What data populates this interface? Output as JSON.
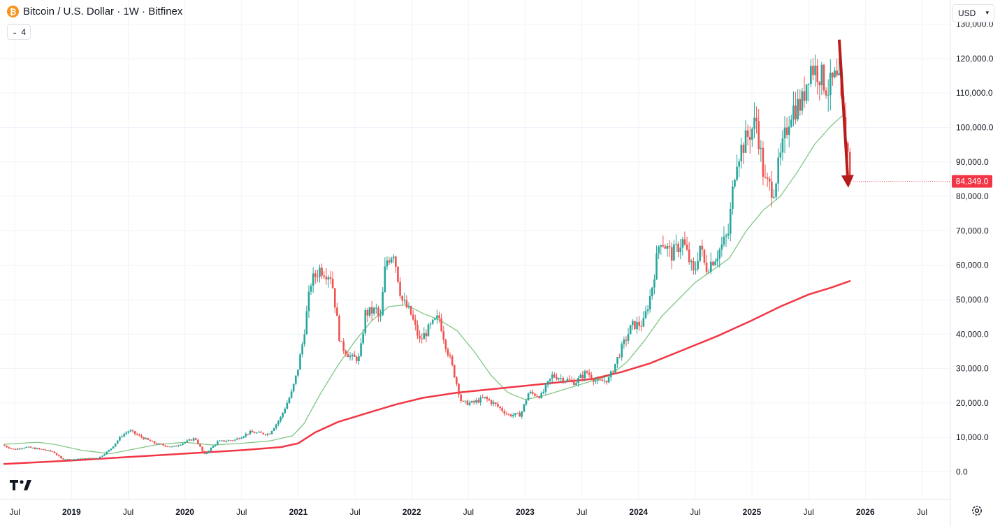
{
  "header": {
    "symbol_icon": "bitcoin-icon",
    "title": "Bitcoin / U.S. Dollar · 1W · Bitfinex",
    "indicators_count": "4"
  },
  "currency": {
    "selected": "USD"
  },
  "colors": {
    "up": "#26a69a",
    "down": "#ef5350",
    "ma_short": "#81c784",
    "ma_long": "#f23645",
    "arrow": "#b71c1c",
    "price_label": "#f23645",
    "grid": "#f0f3fa"
  },
  "icons": {
    "logo": "tradingview-logo-icon",
    "settings": "gear-icon"
  },
  "chart_data": {
    "type": "candlestick",
    "ylim": [
      -8000,
      137000
    ],
    "y_ticks": [
      {
        "value": 130000,
        "label": "130,000.0"
      },
      {
        "value": 120000,
        "label": "120,000.0"
      },
      {
        "value": 110000,
        "label": "110,000.0"
      },
      {
        "value": 100000,
        "label": "100,000.0"
      },
      {
        "value": 90000,
        "label": "90,000.0"
      },
      {
        "value": 80000,
        "label": "80,000.0"
      },
      {
        "value": 70000,
        "label": "70,000.0"
      },
      {
        "value": 60000,
        "label": "60,000.0"
      },
      {
        "value": 50000,
        "label": "50,000.0"
      },
      {
        "value": 40000,
        "label": "40,000.0"
      },
      {
        "value": 30000,
        "label": "30,000.0"
      },
      {
        "value": 20000,
        "label": "20,000.0"
      },
      {
        "value": 10000,
        "label": "10,000.0"
      },
      {
        "value": 0,
        "label": "0.0"
      }
    ],
    "x_ticks": [
      {
        "t": 2018.5,
        "label": "Jul",
        "bold": false
      },
      {
        "t": 2019.0,
        "label": "2019",
        "bold": true
      },
      {
        "t": 2019.5,
        "label": "Jul",
        "bold": false
      },
      {
        "t": 2020.0,
        "label": "2020",
        "bold": true
      },
      {
        "t": 2020.5,
        "label": "Jul",
        "bold": false
      },
      {
        "t": 2021.0,
        "label": "2021",
        "bold": true
      },
      {
        "t": 2021.5,
        "label": "Jul",
        "bold": false
      },
      {
        "t": 2022.0,
        "label": "2022",
        "bold": true
      },
      {
        "t": 2022.5,
        "label": "Jul",
        "bold": false
      },
      {
        "t": 2023.0,
        "label": "2023",
        "bold": true
      },
      {
        "t": 2023.5,
        "label": "Jul",
        "bold": false
      },
      {
        "t": 2024.0,
        "label": "2024",
        "bold": true
      },
      {
        "t": 2024.5,
        "label": "Jul",
        "bold": false
      },
      {
        "t": 2025.0,
        "label": "2025",
        "bold": true
      },
      {
        "t": 2025.5,
        "label": "Jul",
        "bold": false
      },
      {
        "t": 2026.0,
        "label": "2026",
        "bold": true
      },
      {
        "t": 2026.5,
        "label": "Jul",
        "bold": false
      }
    ],
    "x_range": [
      2018.4,
      2026.75
    ],
    "price_anchors": [
      [
        2018.4,
        7800
      ],
      [
        2018.5,
        6500
      ],
      [
        2018.6,
        7200
      ],
      [
        2018.75,
        6500
      ],
      [
        2018.85,
        5800
      ],
      [
        2018.92,
        3800
      ],
      [
        2019.0,
        3600
      ],
      [
        2019.15,
        3900
      ],
      [
        2019.25,
        4100
      ],
      [
        2019.35,
        6500
      ],
      [
        2019.45,
        10500
      ],
      [
        2019.52,
        12000
      ],
      [
        2019.6,
        10500
      ],
      [
        2019.75,
        8200
      ],
      [
        2019.9,
        7200
      ],
      [
        2020.0,
        8500
      ],
      [
        2020.1,
        9800
      ],
      [
        2020.18,
        5000
      ],
      [
        2020.3,
        8800
      ],
      [
        2020.45,
        9300
      ],
      [
        2020.58,
        11500
      ],
      [
        2020.75,
        11000
      ],
      [
        2020.85,
        15500
      ],
      [
        2020.95,
        23000
      ],
      [
        2021.0,
        29000
      ],
      [
        2021.05,
        38000
      ],
      [
        2021.12,
        55000
      ],
      [
        2021.2,
        59000
      ],
      [
        2021.3,
        57000
      ],
      [
        2021.38,
        37000
      ],
      [
        2021.48,
        33000
      ],
      [
        2021.55,
        33000
      ],
      [
        2021.6,
        46000
      ],
      [
        2021.7,
        47000
      ],
      [
        2021.73,
        43000
      ],
      [
        2021.78,
        61000
      ],
      [
        2021.85,
        64000
      ],
      [
        2021.92,
        50000
      ],
      [
        2022.0,
        46000
      ],
      [
        2022.08,
        38000
      ],
      [
        2022.17,
        42000
      ],
      [
        2022.25,
        45000
      ],
      [
        2022.3,
        38000
      ],
      [
        2022.38,
        29000
      ],
      [
        2022.45,
        20000
      ],
      [
        2022.55,
        20000
      ],
      [
        2022.65,
        21500
      ],
      [
        2022.75,
        19500
      ],
      [
        2022.86,
        16500
      ],
      [
        2022.97,
        16600
      ],
      [
        2023.04,
        23000
      ],
      [
        2023.15,
        22000
      ],
      [
        2023.25,
        28000
      ],
      [
        2023.35,
        27000
      ],
      [
        2023.45,
        26000
      ],
      [
        2023.55,
        29000
      ],
      [
        2023.65,
        26000
      ],
      [
        2023.75,
        27000
      ],
      [
        2023.85,
        35000
      ],
      [
        2023.95,
        42500
      ],
      [
        2024.05,
        43000
      ],
      [
        2024.12,
        52000
      ],
      [
        2024.2,
        68000
      ],
      [
        2024.3,
        63000
      ],
      [
        2024.4,
        67000
      ],
      [
        2024.5,
        57000
      ],
      [
        2024.55,
        66000
      ],
      [
        2024.6,
        59000
      ],
      [
        2024.7,
        63000
      ],
      [
        2024.8,
        69000
      ],
      [
        2024.87,
        91000
      ],
      [
        2024.95,
        96000
      ],
      [
        2025.05,
        102000
      ],
      [
        2025.12,
        84000
      ],
      [
        2025.2,
        82000
      ],
      [
        2025.28,
        94000
      ],
      [
        2025.35,
        105000
      ],
      [
        2025.45,
        107000
      ],
      [
        2025.52,
        118000
      ],
      [
        2025.6,
        116000
      ],
      [
        2025.68,
        111000
      ],
      [
        2025.74,
        114000
      ],
      [
        2025.78,
        112000
      ],
      [
        2025.82,
        100000
      ],
      [
        2025.85,
        95000
      ],
      [
        2025.87,
        84349
      ]
    ],
    "series": [
      {
        "name": "",
        "kind": "sma-50w",
        "points": [
          [
            2018.4,
            8000
          ],
          [
            2018.7,
            8600
          ],
          [
            2018.85,
            8000
          ],
          [
            2019.1,
            6200
          ],
          [
            2019.35,
            5300
          ],
          [
            2019.5,
            6300
          ],
          [
            2019.75,
            7900
          ],
          [
            2020.0,
            8600
          ],
          [
            2020.25,
            7800
          ],
          [
            2020.5,
            8300
          ],
          [
            2020.75,
            9000
          ],
          [
            2020.95,
            10500
          ],
          [
            2021.05,
            14000
          ],
          [
            2021.2,
            23000
          ],
          [
            2021.35,
            31000
          ],
          [
            2021.5,
            38000
          ],
          [
            2021.65,
            44000
          ],
          [
            2021.8,
            48000
          ],
          [
            2021.95,
            48500
          ],
          [
            2022.1,
            46000
          ],
          [
            2022.25,
            44000
          ],
          [
            2022.4,
            41000
          ],
          [
            2022.55,
            35000
          ],
          [
            2022.7,
            28000
          ],
          [
            2022.85,
            23000
          ],
          [
            2023.0,
            21000
          ],
          [
            2023.15,
            22000
          ],
          [
            2023.3,
            23500
          ],
          [
            2023.45,
            25000
          ],
          [
            2023.6,
            26500
          ],
          [
            2023.75,
            28000
          ],
          [
            2023.9,
            32000
          ],
          [
            2024.05,
            38000
          ],
          [
            2024.2,
            45000
          ],
          [
            2024.35,
            50000
          ],
          [
            2024.5,
            55000
          ],
          [
            2024.65,
            58500
          ],
          [
            2024.8,
            62000
          ],
          [
            2024.95,
            70000
          ],
          [
            2025.1,
            76000
          ],
          [
            2025.25,
            80000
          ],
          [
            2025.4,
            87000
          ],
          [
            2025.55,
            95000
          ],
          [
            2025.7,
            100500
          ],
          [
            2025.8,
            103500
          ]
        ]
      },
      {
        "name": "",
        "kind": "sma-200w",
        "points": [
          [
            2018.4,
            2300
          ],
          [
            2019.0,
            3300
          ],
          [
            2019.5,
            4300
          ],
          [
            2020.0,
            5300
          ],
          [
            2020.5,
            6300
          ],
          [
            2020.85,
            7200
          ],
          [
            2021.0,
            8300
          ],
          [
            2021.15,
            11500
          ],
          [
            2021.35,
            14500
          ],
          [
            2021.6,
            17000
          ],
          [
            2021.85,
            19500
          ],
          [
            2022.1,
            21500
          ],
          [
            2022.4,
            23000
          ],
          [
            2022.7,
            24000
          ],
          [
            2023.0,
            25000
          ],
          [
            2023.3,
            26000
          ],
          [
            2023.6,
            27000
          ],
          [
            2023.85,
            29000
          ],
          [
            2024.1,
            31500
          ],
          [
            2024.4,
            35500
          ],
          [
            2024.7,
            39500
          ],
          [
            2025.0,
            44000
          ],
          [
            2025.25,
            48000
          ],
          [
            2025.5,
            51500
          ],
          [
            2025.7,
            53500
          ],
          [
            2025.87,
            55500
          ]
        ]
      }
    ],
    "last_price": {
      "value": 84349,
      "label": "84,349.0"
    },
    "annotation": {
      "type": "arrow",
      "from": [
        2025.77,
        125500
      ],
      "to": [
        2025.85,
        82500
      ]
    }
  }
}
